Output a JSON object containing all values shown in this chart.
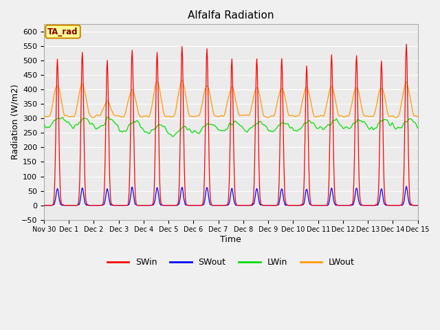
{
  "title": "Alfalfa Radiation",
  "xlabel": "Time",
  "ylabel": "Radiation (W/m2)",
  "ylim": [
    -50,
    625
  ],
  "yticks": [
    -50,
    0,
    50,
    100,
    150,
    200,
    250,
    300,
    350,
    400,
    450,
    500,
    550,
    600
  ],
  "bg_color": "#f0f0f0",
  "plot_bg_color": "#ebebeb",
  "grid_color": "white",
  "line_colors": {
    "SWin": "#ff0000",
    "SWout": "#0000ff",
    "LWin": "#00dd00",
    "LWout": "#ff9900"
  },
  "annotation_text": "TA_rad",
  "annotation_bg": "#ffff99",
  "annotation_border": "#cc8800",
  "sw_peaks": [
    505,
    530,
    500,
    535,
    530,
    550,
    540,
    507,
    507,
    505,
    480,
    520,
    518,
    500,
    557
  ],
  "lw_out_peaks": [
    420,
    425,
    360,
    405,
    430,
    435,
    415,
    415,
    415,
    415,
    415,
    415,
    415,
    415,
    430
  ],
  "tick_labels": [
    "Nov 30",
    "Dec 1",
    "Dec 2",
    "Dec 3",
    "Dec 4",
    "Dec 5",
    "Dec 6",
    "Dec 7",
    "Dec 8",
    "Dec 9",
    "Dec 10",
    "Dec 11",
    "Dec 12",
    "Dec 13",
    "Dec 14",
    "Dec 15"
  ]
}
